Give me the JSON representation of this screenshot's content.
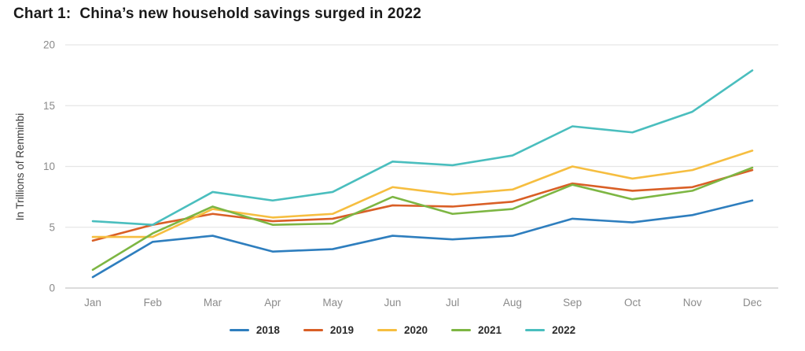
{
  "title": "Chart 1:  China’s new household savings surged in 2022",
  "chart_data": {
    "type": "line",
    "title": "Chart 1:  China’s new household savings surged in 2022",
    "xlabel": "",
    "ylabel": "In Trillions of Renminbi",
    "ylim": [
      0,
      20
    ],
    "yticks": [
      0,
      5,
      10,
      15,
      20
    ],
    "grid": true,
    "legend_position": "bottom",
    "categories": [
      "Jan",
      "Feb",
      "Mar",
      "Apr",
      "May",
      "Jun",
      "Jul",
      "Aug",
      "Sep",
      "Oct",
      "Nov",
      "Dec"
    ],
    "series": [
      {
        "name": "2018",
        "color": "#2E7EBE",
        "values": [
          0.9,
          3.8,
          4.3,
          3.0,
          3.2,
          4.3,
          4.0,
          4.3,
          5.7,
          5.4,
          6.0,
          7.2
        ]
      },
      {
        "name": "2019",
        "color": "#D95F26",
        "values": [
          3.9,
          5.2,
          6.1,
          5.5,
          5.7,
          6.8,
          6.7,
          7.1,
          8.6,
          8.0,
          8.3,
          9.7
        ]
      },
      {
        "name": "2020",
        "color": "#F6BE40",
        "values": [
          4.2,
          4.2,
          6.5,
          5.8,
          6.1,
          8.3,
          7.7,
          8.1,
          10.0,
          9.0,
          9.7,
          11.3
        ]
      },
      {
        "name": "2021",
        "color": "#7DB643",
        "values": [
          1.5,
          4.5,
          6.7,
          5.2,
          5.3,
          7.5,
          6.1,
          6.5,
          8.5,
          7.3,
          8.0,
          9.9
        ]
      },
      {
        "name": "2022",
        "color": "#4ABEBE",
        "values": [
          5.5,
          5.2,
          7.9,
          7.2,
          7.9,
          10.4,
          10.1,
          10.9,
          13.3,
          12.8,
          14.5,
          17.9
        ]
      }
    ]
  },
  "style": {
    "grid_color": "#e6e6e6",
    "zero_line_color": "#cfcfcf",
    "tick_label_color": "#8a8a8a",
    "axis_title_color": "#3c3c3c"
  }
}
